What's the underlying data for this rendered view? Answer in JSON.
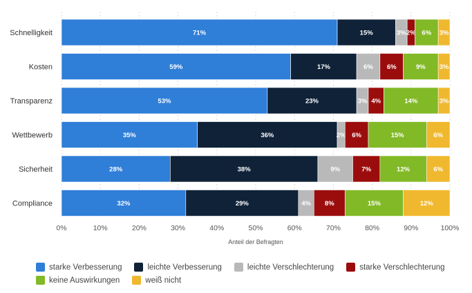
{
  "chart_data": {
    "type": "bar",
    "orientation": "horizontal",
    "stacked": true,
    "categories": [
      "Schnelligkeit",
      "Kosten",
      "Transparenz",
      "Wettbewerb",
      "Sicherheit",
      "Compliance"
    ],
    "series": [
      {
        "name": "starke Verbesserung",
        "color": "#2f7ed8",
        "values": [
          71,
          59,
          53,
          35,
          28,
          32
        ],
        "labels": [
          "71%",
          "59%",
          "53%",
          "35%",
          "28%",
          "32%"
        ]
      },
      {
        "name": "leichte Verbesserung",
        "color": "#0f2238",
        "values": [
          15,
          17,
          23,
          36,
          38,
          29
        ],
        "labels": [
          "15%",
          "17%",
          "23%",
          "36%",
          "38%",
          "29%"
        ]
      },
      {
        "name": "leichte Verschlechterung",
        "color": "#b9b9b9",
        "values": [
          3,
          6,
          3,
          2,
          9,
          4
        ],
        "labels": [
          "3%",
          "6%",
          "3%",
          "2%",
          "9%",
          "4%"
        ]
      },
      {
        "name": "starke Verschlechterung",
        "color": "#9b0d0d",
        "values": [
          2,
          6,
          4,
          6,
          7,
          8
        ],
        "labels": [
          "2%",
          "6%",
          "4%",
          "6%",
          "7%",
          "8%"
        ]
      },
      {
        "name": "keine Auswirkungen",
        "color": "#82b927",
        "values": [
          6,
          9,
          14,
          15,
          12,
          15
        ],
        "labels": [
          "6%",
          "9%",
          "14%",
          "15%",
          "12%",
          "15%"
        ]
      },
      {
        "name": "weiß nicht",
        "color": "#f0b82e",
        "values": [
          3,
          3,
          3,
          6,
          6,
          12
        ],
        "labels": [
          "3%",
          "3%",
          "3%",
          "6%",
          "6%",
          "12%"
        ]
      }
    ],
    "xlabel": "Anteil der Befragten",
    "xlim": [
      0,
      100
    ],
    "xticks": [
      "0%",
      "10%",
      "20%",
      "30%",
      "40%",
      "50%",
      "60%",
      "70%",
      "80%",
      "90%",
      "100%"
    ],
    "grid": true,
    "legend_position": "bottom"
  }
}
